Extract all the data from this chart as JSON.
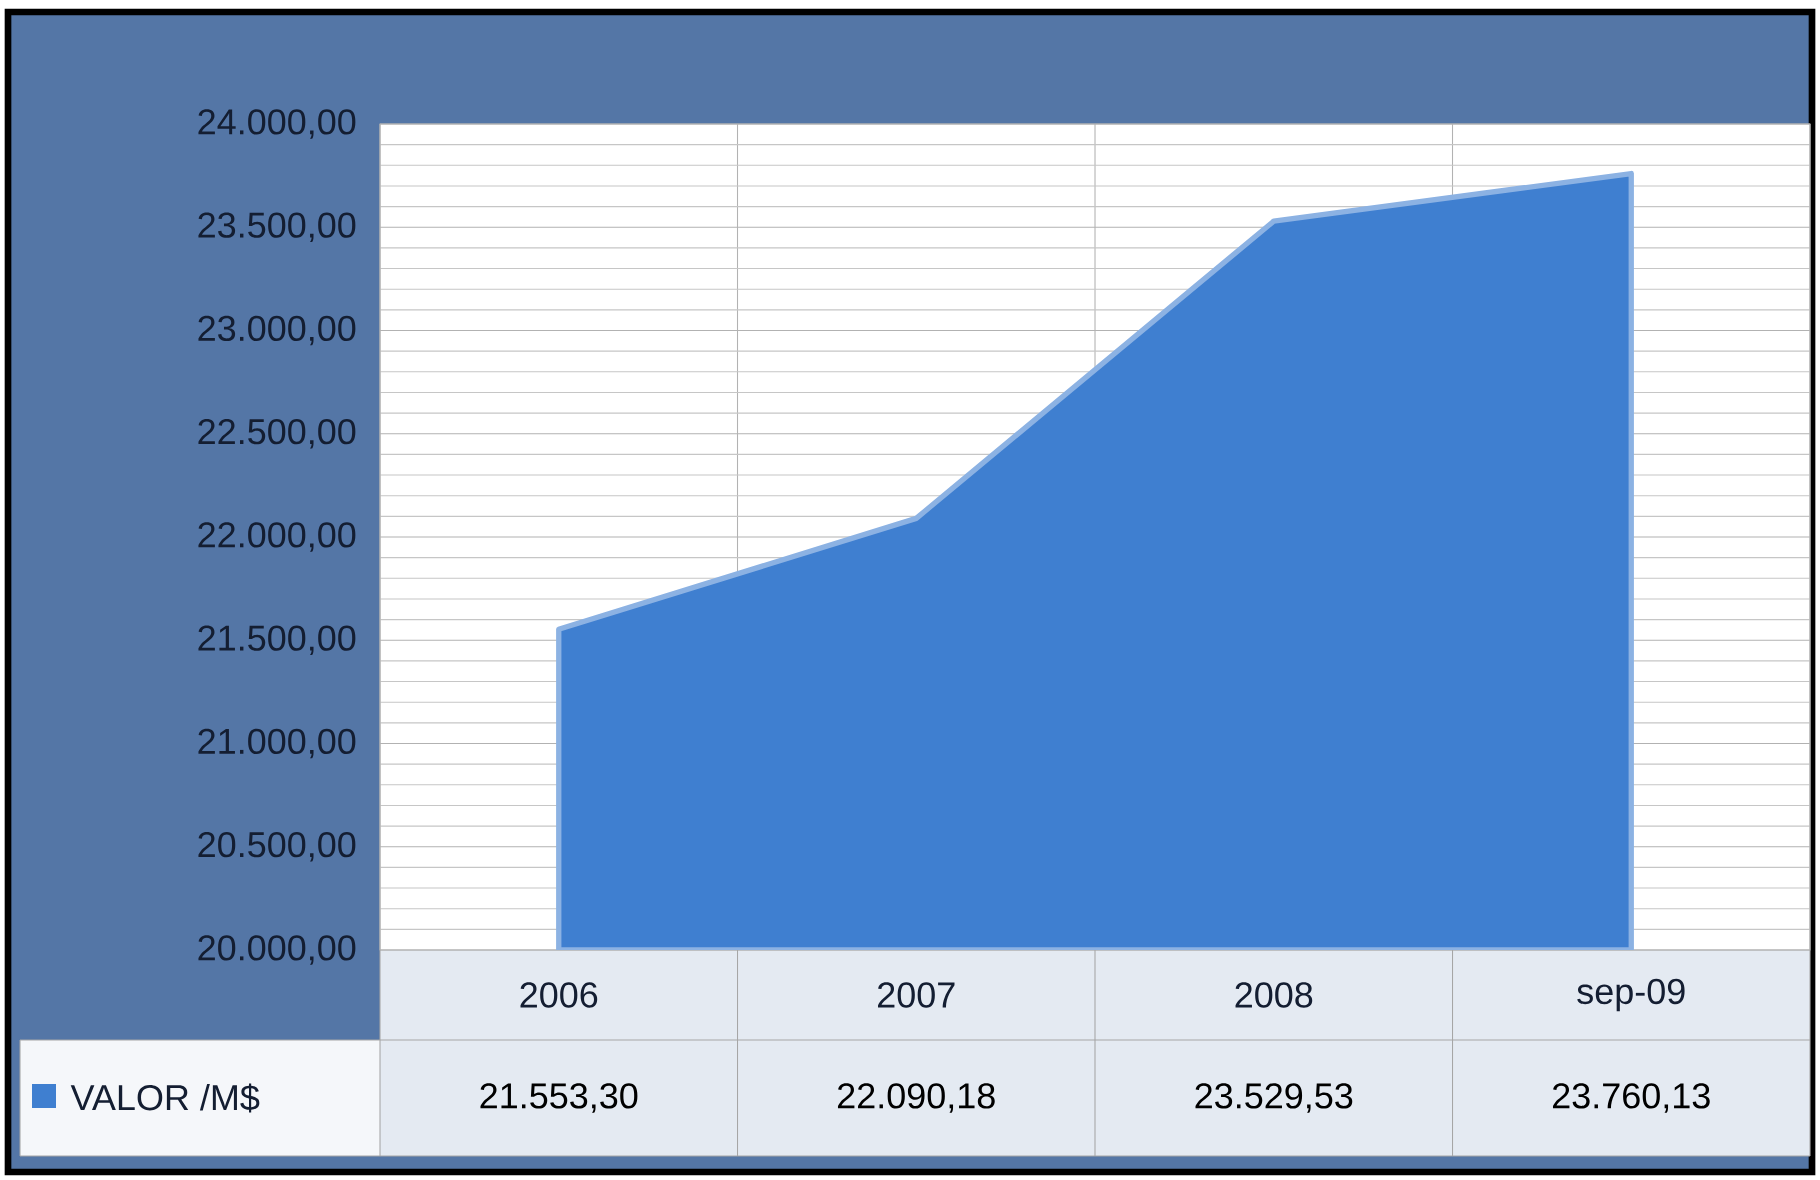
{
  "chart_data": {
    "type": "area",
    "categories": [
      "2006",
      "2007",
      "2008",
      "sep-09"
    ],
    "series": [
      {
        "name": "VALOR /M$",
        "color": "#3f7fd0",
        "values": [
          21553.3,
          22090.18,
          23529.53,
          23760.13
        ],
        "value_labels": [
          "21.553,30",
          "22.090,18",
          "23.529,53",
          "23.760,13"
        ]
      }
    ],
    "ylim": [
      20000,
      24000
    ],
    "yticks": [
      {
        "value": 20000,
        "label": "20.000,00"
      },
      {
        "value": 20500,
        "label": "20.500,00"
      },
      {
        "value": 21000,
        "label": "21.000,00"
      },
      {
        "value": 21500,
        "label": "21.500,00"
      },
      {
        "value": 22000,
        "label": "22.000,00"
      },
      {
        "value": 22500,
        "label": "22.500,00"
      },
      {
        "value": 23000,
        "label": "23.000,00"
      },
      {
        "value": 23500,
        "label": "23.500,00"
      },
      {
        "value": 24000,
        "label": "24.000,00"
      }
    ],
    "grid": true
  }
}
